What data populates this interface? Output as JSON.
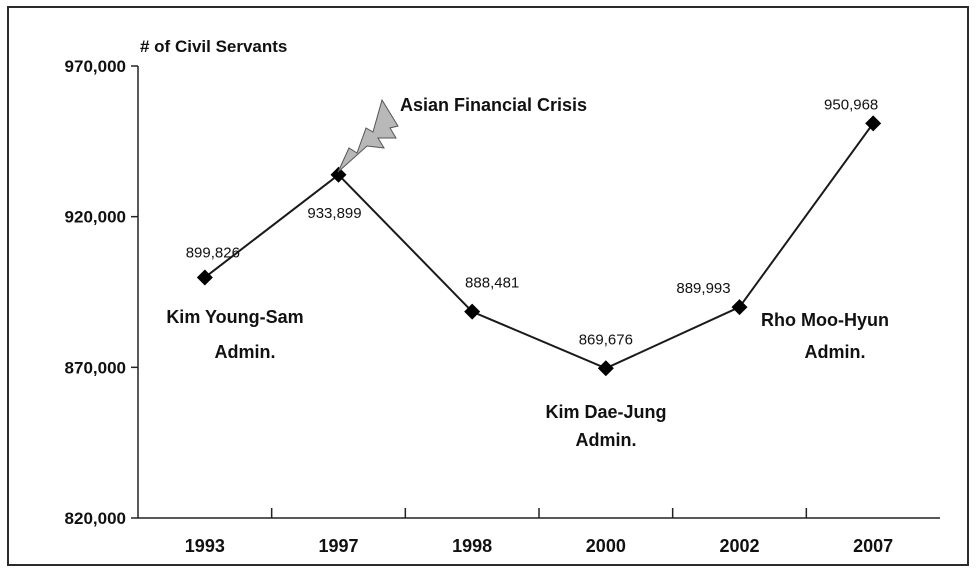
{
  "chart_data": {
    "type": "line",
    "ylabel": "# of Civil Servants",
    "categories": [
      "1993",
      "1997",
      "1998",
      "2000",
      "2002",
      "2007"
    ],
    "values": [
      899826,
      933899,
      888481,
      869676,
      889993,
      950968
    ],
    "value_labels": [
      "899,826",
      "933,899",
      "888,481",
      "869,676",
      "889,993",
      "950,968"
    ],
    "ylim": [
      820000,
      970000
    ],
    "yticks": [
      {
        "value": 820000,
        "label": "820,000"
      },
      {
        "value": 870000,
        "label": "870,000"
      },
      {
        "value": 920000,
        "label": "920,000"
      },
      {
        "value": 970000,
        "label": "970,000"
      }
    ],
    "grid": false,
    "legend": "none",
    "line_color": "#1a1a1a",
    "annotations": [
      {
        "text": "Asian Financial Crisis",
        "icon": "lightning-bolt-icon"
      },
      {
        "lines": [
          "Kim Young-Sam",
          "Admin."
        ]
      },
      {
        "lines": [
          "Kim Dae-Jung",
          "Admin."
        ]
      },
      {
        "lines": [
          "Rho Moo-Hyun",
          "Admin."
        ]
      }
    ]
  }
}
